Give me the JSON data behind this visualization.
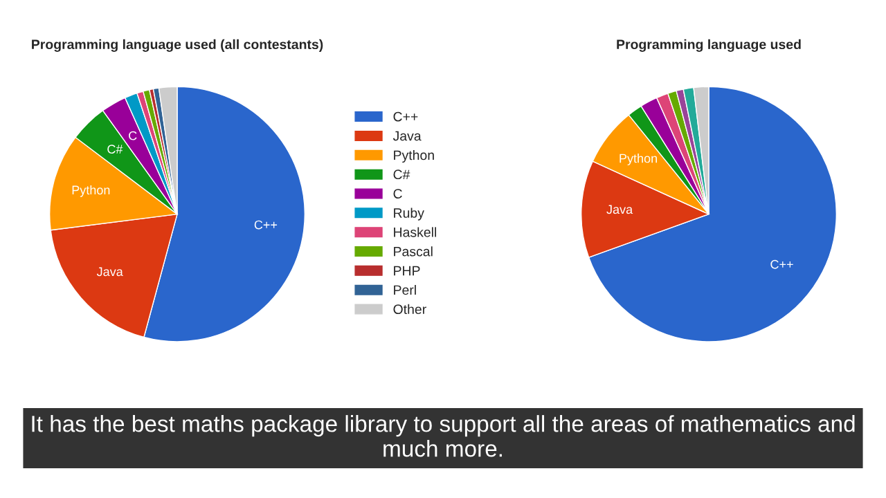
{
  "chart_data": [
    {
      "type": "pie",
      "title": "Programming language used (all contestants)",
      "categories": [
        "C++",
        "Java",
        "Python",
        "C#",
        "C",
        "Ruby",
        "Haskell",
        "Pascal",
        "PHP",
        "Perl",
        "Other"
      ],
      "values": [
        54.2,
        18.8,
        12.3,
        4.8,
        3.2,
        1.6,
        0.8,
        0.8,
        0.5,
        0.7,
        2.3
      ],
      "colors": [
        "#2a66cc",
        "#dc3912",
        "#ff9900",
        "#109618",
        "#990099",
        "#0099c6",
        "#dd4477",
        "#66aa00",
        "#b82e2e",
        "#316395",
        "#cccccc"
      ],
      "legend": "right",
      "annotations": [
        "It has the best maths package library to support all the areas of mathematics and much more."
      ]
    },
    {
      "type": "pie",
      "title": "Programming language used",
      "categories": [
        "C++",
        "Java",
        "Python",
        null,
        null,
        null,
        null,
        null,
        null,
        null
      ],
      "values": [
        69.5,
        12.3,
        7.4,
        1.9,
        2.2,
        1.5,
        1.1,
        0.9,
        1.3,
        1.9
      ],
      "colors": [
        "#2a66cc",
        "#dc3912",
        "#ff9900",
        "#109618",
        "#990099",
        "#dd4477",
        "#66aa00",
        "#994499",
        "#22aa99",
        "#cccccc"
      ]
    }
  ]
}
